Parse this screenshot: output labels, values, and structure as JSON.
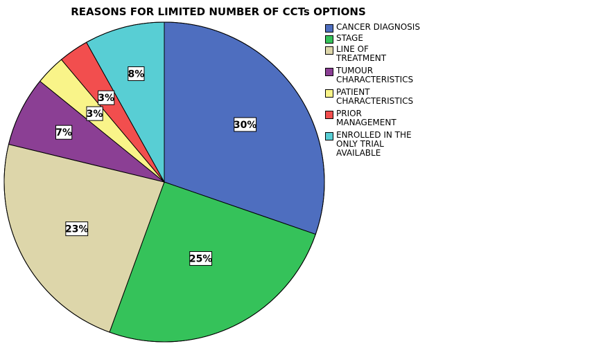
{
  "chart_data": {
    "type": "pie",
    "title": "REASONS FOR LIMITED NUMBER OF CCTs OPTIONS",
    "legend_position": "right",
    "slices": [
      {
        "label": "CANCER DIAGNOSIS",
        "legend_text": "CANCER DIAGNOSIS",
        "value": 30,
        "value_label": "30%",
        "color": "#4e6ebf"
      },
      {
        "label": "STAGE",
        "legend_text": "STAGE",
        "value": 25,
        "value_label": "25%",
        "color": "#35c25a"
      },
      {
        "label": "LINE OF TREATMENT",
        "legend_text": "LINE OF\nTREATMENT",
        "value": 23,
        "value_label": "23%",
        "color": "#ddd6aa"
      },
      {
        "label": "TUMOUR CHARACTERISTICS",
        "legend_text": "TUMOUR\nCHARACTERISTICS",
        "value": 7,
        "value_label": "7%",
        "color": "#8b3f94"
      },
      {
        "label": "PATIENT CHARACTERISTICS",
        "legend_text": "PATIENT\nCHARACTERISTICS",
        "value": 3,
        "value_label": "3%",
        "color": "#f9f489"
      },
      {
        "label": "PRIOR MANAGEMENT",
        "legend_text": "PRIOR\nMANAGEMENT",
        "value": 3,
        "value_label": "3%",
        "color": "#f24e4e"
      },
      {
        "label": "ENROLLED IN THE ONLY TRIAL AVAILABLE",
        "legend_text": "ENROLLED IN THE\nONLY TRIAL\nAVAILABLE",
        "value": 8,
        "value_label": "8%",
        "color": "#58ced4"
      }
    ]
  }
}
